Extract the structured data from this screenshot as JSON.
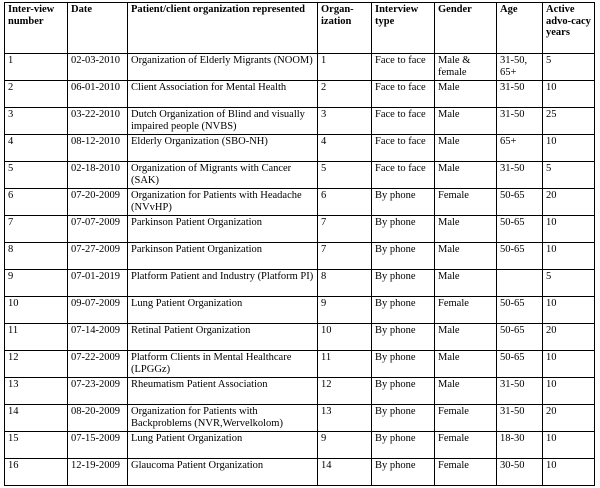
{
  "table": {
    "header": [
      "Inter-view number",
      "Date",
      "Patient/client organization represented",
      "Organ-ization",
      "Interview type",
      "Gender",
      "Age",
      "Active advo-cacy years"
    ],
    "rows": [
      [
        1,
        "02-03-2010",
        "Organization of Elderly Migrants (NOOM)",
        1,
        "Face to face",
        "Male & female",
        "31-50, 65+",
        5
      ],
      [
        2,
        "06-01-2010",
        "Client Association for Mental Health",
        2,
        "Face to face",
        "Male",
        "31-50",
        10
      ],
      [
        3,
        "03-22-2010",
        "Dutch Organization of Blind and visually impaired people (NVBS)",
        3,
        "Face to face",
        "Male",
        "31-50",
        25
      ],
      [
        4,
        "08-12-2010",
        "Elderly Organization (SBO-NH)",
        4,
        "Face to face",
        "Male",
        "65+",
        10
      ],
      [
        5,
        "02-18-2010",
        "Organization of Migrants with Cancer (SAK)",
        5,
        "Face to face",
        "Male",
        "31-50",
        5
      ],
      [
        6,
        "07-20-2009",
        "Organization for Patients with Headache (NVvHP)",
        6,
        "By phone",
        "Female",
        "50-65",
        20
      ],
      [
        7,
        "07-07-2009",
        "Parkinson Patient Organization",
        7,
        "By phone",
        "Male",
        "50-65",
        10
      ],
      [
        8,
        "07-27-2009",
        "Parkinson Patient Organization",
        7,
        "By phone",
        "Male",
        "50-65",
        10
      ],
      [
        9,
        "07-01-2019",
        "Platform Patient and Industry (Platform PI)",
        8,
        "By phone",
        "Male",
        null,
        5
      ],
      [
        10,
        "09-07-2009",
        "Lung Patient Organization",
        9,
        "By phone",
        "Female",
        "50-65",
        10
      ],
      [
        11,
        "07-14-2009",
        "Retinal Patient Organization",
        10,
        "By phone",
        "Male",
        "50-65",
        20
      ],
      [
        12,
        "07-22-2009",
        "Platform Clients in Mental Healthcare (LPGGz)",
        11,
        "By phone",
        "Male",
        "50-65",
        10
      ],
      [
        13,
        "07-23-2009",
        "Rheumatism Patient Association",
        12,
        "By phone",
        "Male",
        "31-50",
        10
      ],
      [
        14,
        "08-20-2009",
        "Organization for Patients with Backproblems (NVR,Wervelkolom)",
        13,
        "By phone",
        "Female",
        "31-50",
        20
      ],
      [
        15,
        "07-15-2009",
        "Lung Patient Organization",
        9,
        "By phone",
        "Female",
        "18-30",
        10
      ],
      [
        16,
        "12-19-2009",
        "Glaucoma Patient Organization",
        14,
        "By phone",
        "Female",
        "30-50",
        10
      ]
    ]
  }
}
